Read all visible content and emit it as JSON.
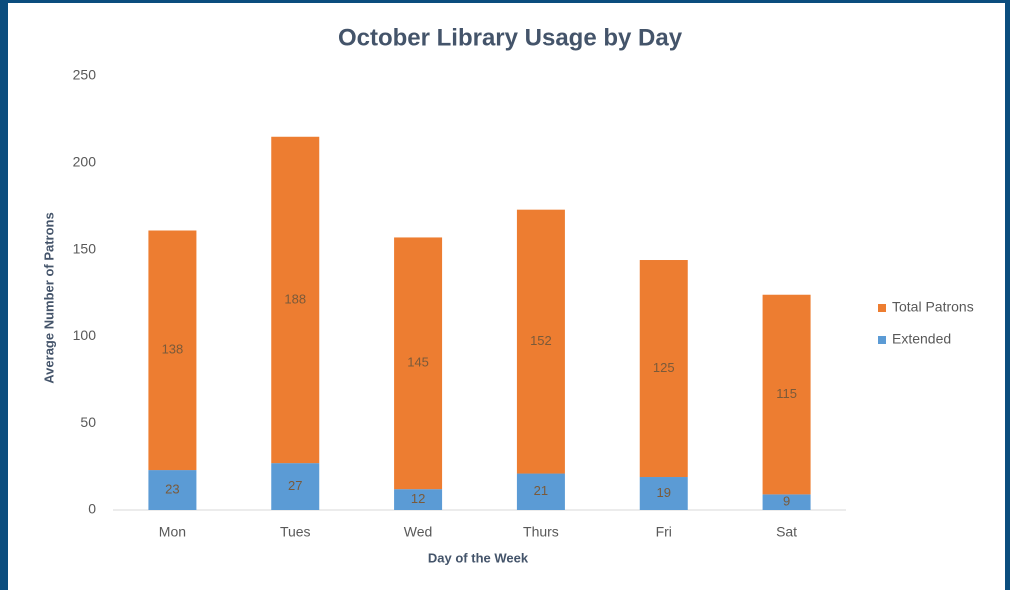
{
  "chart_data": {
    "type": "stacked_bar",
    "title": "October Library Usage by Day",
    "x_label": "Day of the Week",
    "y_label": "Average Number of Patrons",
    "categories": [
      "Mon",
      "Tues",
      "Wed",
      "Thurs",
      "Fri",
      "Sat"
    ],
    "series": [
      {
        "name": "Extended",
        "color": "#5b9bd5",
        "values": [
          23,
          27,
          12,
          21,
          19,
          9
        ]
      },
      {
        "name": "Total Patrons",
        "color": "#ed7d31",
        "values": [
          138,
          188,
          145,
          152,
          125,
          115
        ]
      }
    ],
    "ylim": [
      0,
      250
    ],
    "yticks": [
      0,
      50,
      100,
      150,
      200,
      250
    ],
    "grid": false,
    "legend": "right"
  }
}
